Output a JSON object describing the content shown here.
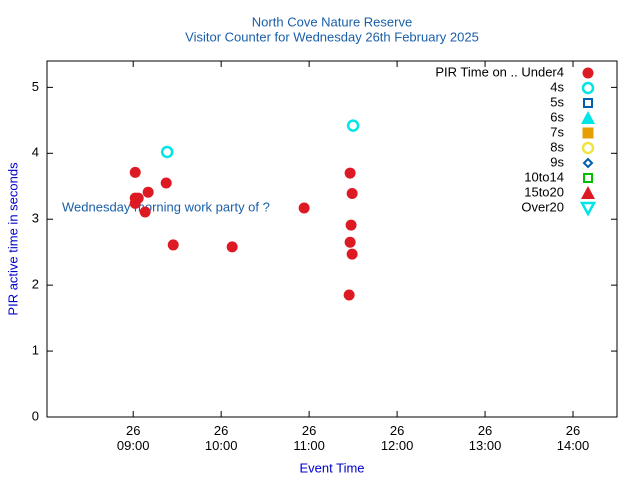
{
  "chart_data": {
    "type": "scatter",
    "title": "North Cove Nature Reserve",
    "subtitle": "Visitor Counter for Wednesday 26th February 2025",
    "x_label": "Event Time",
    "y_label": "PIR active time in seconds",
    "annotation": "Wednesday morning work party of ?",
    "xlim": [
      8.02,
      14.5
    ],
    "xticks": [
      {
        "value": 9,
        "label": "26\n09:00"
      },
      {
        "value": 10,
        "label": "26\n10:00"
      },
      {
        "value": 11,
        "label": "26\n11:00"
      },
      {
        "value": 12,
        "label": "26\n12:00"
      },
      {
        "value": 13,
        "label": "26\n13:00"
      },
      {
        "value": 14,
        "label": "26\n14:00"
      }
    ],
    "ylim": [
      0,
      5.4
    ],
    "yticks": [
      0,
      1,
      2,
      3,
      4,
      5
    ],
    "legend": "top-right",
    "series": [
      {
        "name": "PIR Time on .. Under4",
        "color": "#dd1a24",
        "marker": "circle",
        "x": [
          9.023,
          9.023,
          9.023,
          9.057,
          9.17,
          9.136,
          9.375,
          9.455,
          10.125,
          10.943,
          11.466,
          11.489,
          11.477,
          11.466,
          11.489,
          11.455
        ],
        "values": [
          3.71,
          3.32,
          3.24,
          3.32,
          3.41,
          3.11,
          3.55,
          2.61,
          2.58,
          3.17,
          3.7,
          3.39,
          2.91,
          2.65,
          2.47,
          1.85
        ]
      },
      {
        "name": "4s",
        "color": "#00e5e5",
        "marker": "ring",
        "x": [
          9.386,
          11.5
        ],
        "values": [
          4.02,
          4.42
        ]
      },
      {
        "name": "5s",
        "color": "#0060ad",
        "marker": "square-open",
        "x": [],
        "values": []
      },
      {
        "name": "6s",
        "color": "#00e5e5",
        "marker": "triangle",
        "x": [],
        "values": []
      },
      {
        "name": "7s",
        "color": "#e69f00",
        "marker": "square",
        "x": [],
        "values": []
      },
      {
        "name": "8s",
        "color": "#f0e442",
        "marker": "ring",
        "x": [],
        "values": []
      },
      {
        "name": "9s",
        "color": "#0060ad",
        "marker": "diamond-open",
        "x": [],
        "values": []
      },
      {
        "name": "10to14",
        "color": "#00c000",
        "marker": "square-open",
        "x": [],
        "values": []
      },
      {
        "name": "15to20",
        "color": "#dd1a24",
        "marker": "triangle",
        "x": [],
        "values": []
      },
      {
        "name": "Over20",
        "color": "#00e5e5",
        "marker": "triangle-down-open",
        "x": [],
        "values": []
      }
    ]
  }
}
